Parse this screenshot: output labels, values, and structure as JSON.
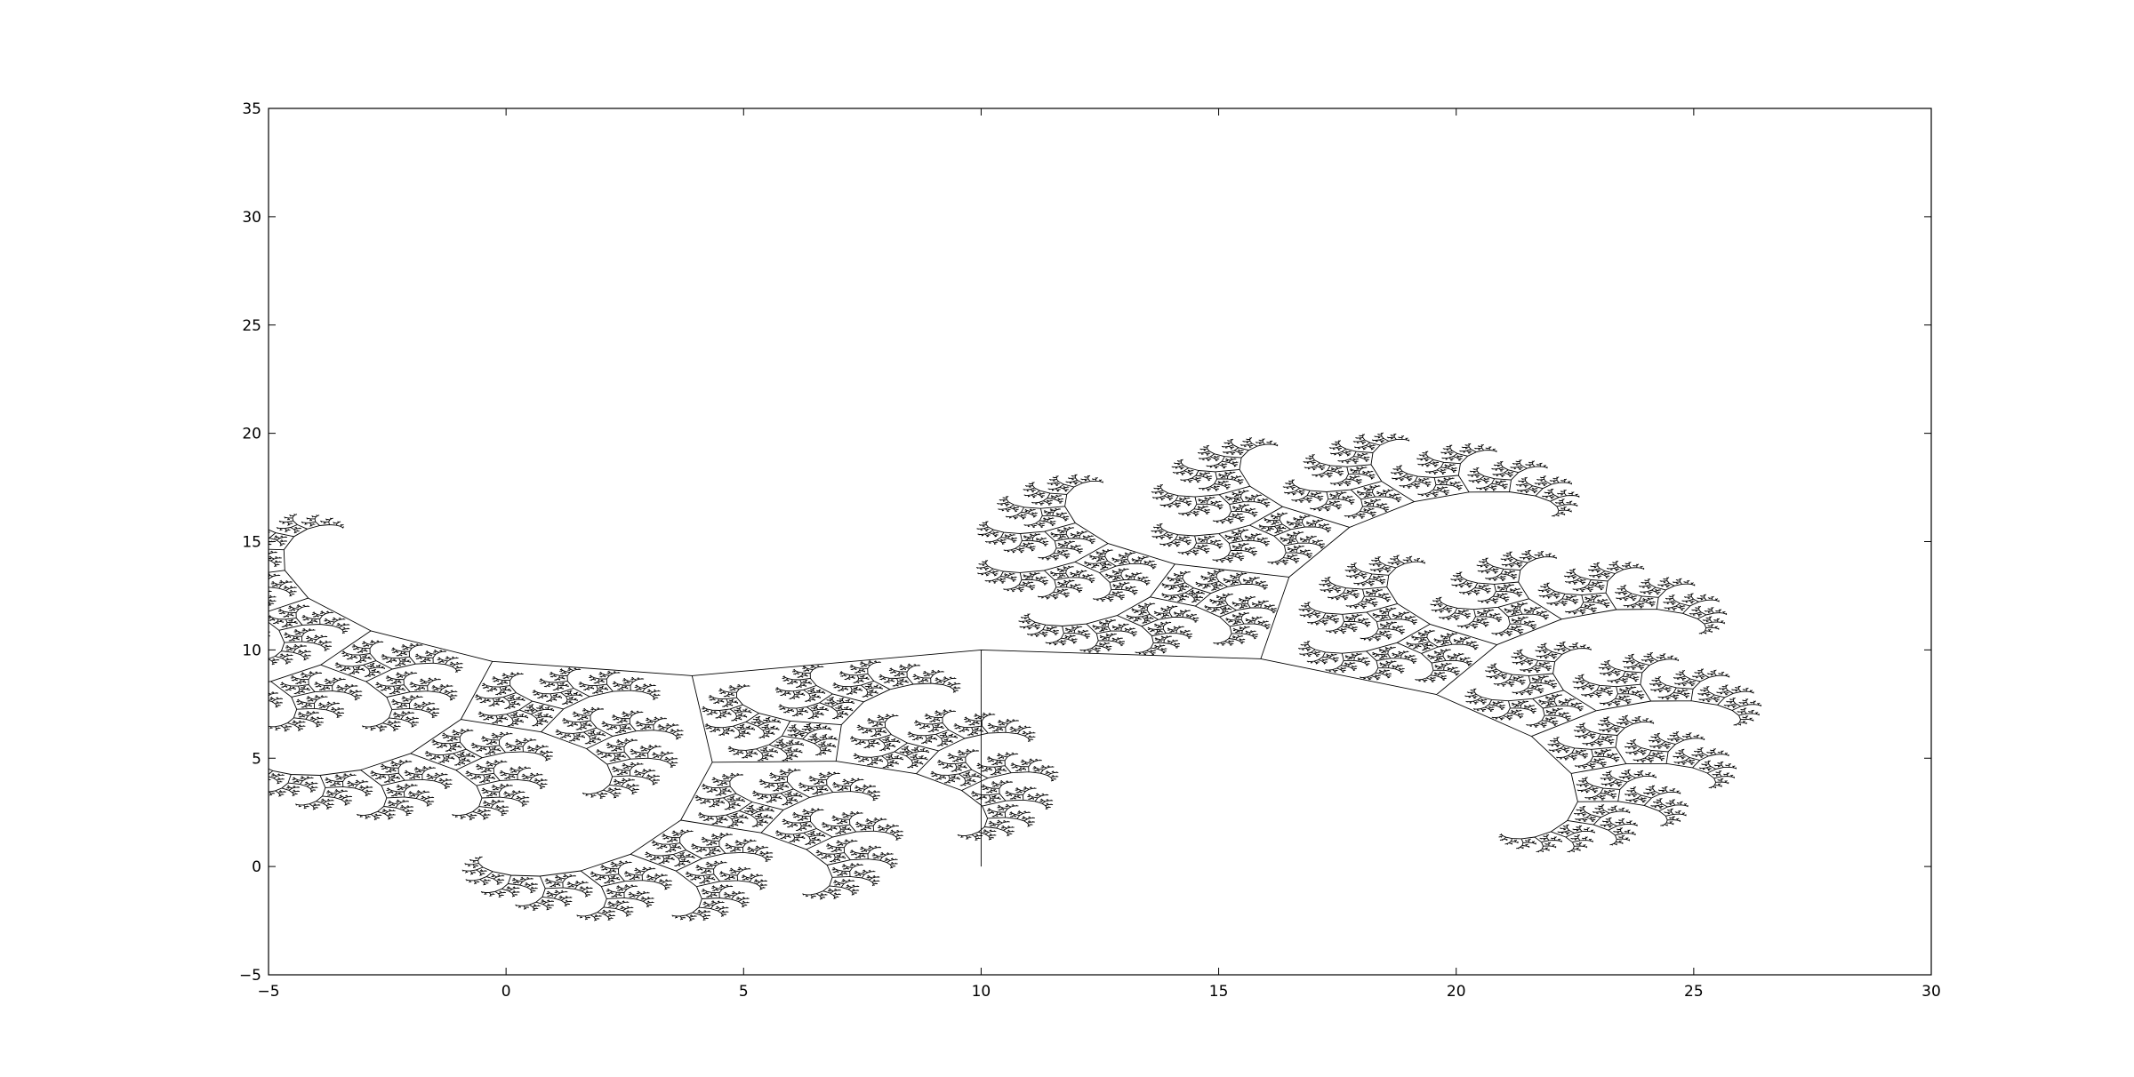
{
  "chart_data": {
    "type": "line",
    "title": "",
    "xlabel": "",
    "ylabel": "",
    "xlim": [
      -5,
      30
    ],
    "ylim": [
      -5,
      35
    ],
    "xticks": [
      -5,
      0,
      5,
      10,
      15,
      20,
      25,
      30
    ],
    "yticks": [
      -5,
      0,
      5,
      10,
      15,
      20,
      25,
      30,
      35
    ],
    "grid": false,
    "legend": "none",
    "colors": {
      "line": "#000000",
      "axes": "#000000",
      "background": "#ffffff"
    },
    "fractal_tree": {
      "trunk_base": [
        10,
        0
      ],
      "trunk_top": [
        10,
        10
      ],
      "left_branch": {
        "length": 11.2,
        "angle_deg": 26.6,
        "scale": 0.9,
        "turn_deg": 15
      },
      "right_branch": {
        "length": 10.5,
        "angle_deg": -4.0,
        "scale": 0.88,
        "turn_deg": -20
      },
      "depth": 14
    }
  }
}
